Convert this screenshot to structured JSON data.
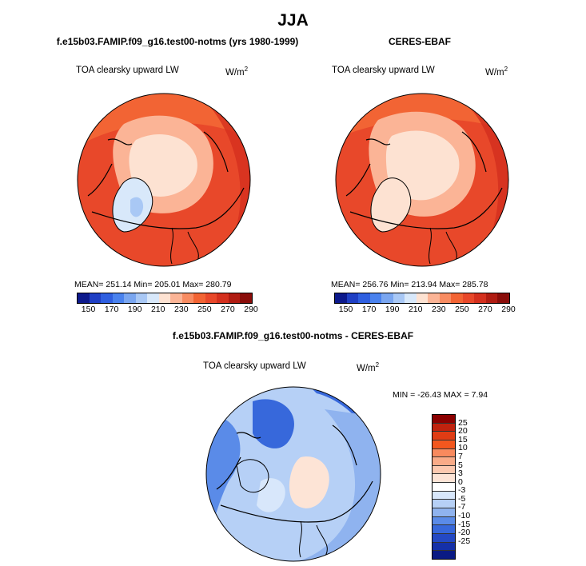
{
  "title": "JJA",
  "panels": [
    {
      "subtitle": "f.e15b03.FAMIP.f09_g16.test00-notms (yrs 1980-1999)",
      "variable": "TOA clearsky upward LW",
      "units": "W/m",
      "units_exp": "2",
      "stats_text": "MEAN= 251.14   Min= 205.01   Max= 280.79"
    },
    {
      "subtitle": "CERES-EBAF",
      "variable": "TOA clearsky upward LW",
      "units": "W/m",
      "units_exp": "2",
      "stats_text": "MEAN= 256.76   Min= 213.94   Max= 285.78"
    },
    {
      "subtitle": "f.e15b03.FAMIP.f09_g16.test00-notms - CERES-EBAF",
      "variable": "TOA clearsky upward LW",
      "units": "W/m",
      "units_exp": "2",
      "stats_text": "MIN = -26.43 MAX =   7.94"
    }
  ],
  "abs_colorbar": {
    "colors": [
      "#0d1a8c",
      "#1f3fc4",
      "#2f5fe0",
      "#4a82ee",
      "#7aa6f0",
      "#a9c8f5",
      "#d8e8fa",
      "#fde2d2",
      "#fbb496",
      "#f88c62",
      "#f26434",
      "#e8482a",
      "#d4301e",
      "#b01c12",
      "#8a0d0a"
    ],
    "tick_labels": [
      "150",
      "170",
      "190",
      "210",
      "230",
      "250",
      "270",
      "290"
    ]
  },
  "diff_colorbar": {
    "colors": [
      "#8b0000",
      "#c0220e",
      "#e03c14",
      "#f3571e",
      "#f88a5e",
      "#f9ab88",
      "#fcc9b0",
      "#fde4d6",
      "#ffffff",
      "#d8e7fb",
      "#b6d0f6",
      "#8fb3ef",
      "#5a8be8",
      "#3768db",
      "#2449c4",
      "#1530a8",
      "#0a1a84"
    ],
    "tick_labels": [
      "25",
      "20",
      "15",
      "10",
      "7",
      "5",
      "3",
      "0",
      "-3",
      "-5",
      "-7",
      "-10",
      "-15",
      "-20",
      "-25"
    ]
  }
}
